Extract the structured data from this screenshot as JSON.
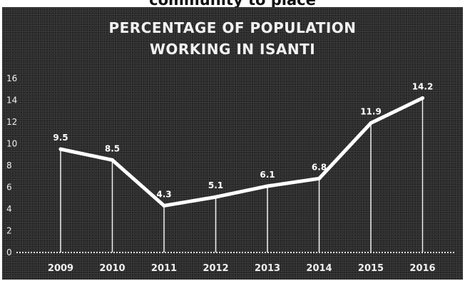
{
  "page": {
    "top_text": "community to place"
  },
  "chart_data": {
    "type": "line",
    "title_lines": [
      "PERCENTAGE OF POPULATION",
      "WORKING IN ISANTI"
    ],
    "categories": [
      "2009",
      "2010",
      "2011",
      "2012",
      "2013",
      "2014",
      "2015",
      "2016"
    ],
    "values": [
      9.5,
      8.5,
      4.3,
      5.1,
      6.1,
      6.8,
      11.9,
      14.2
    ],
    "data_labels": [
      "9.5",
      "8.5",
      "4.3",
      "5.1",
      "6.1",
      "6.8",
      "11.9",
      "14.2"
    ],
    "ylim": [
      0,
      16
    ],
    "yticks": [
      "0",
      "2",
      "4",
      "6",
      "8",
      "10",
      "12",
      "14",
      "16"
    ],
    "xlabel": "",
    "ylabel": "",
    "drop_lines": true,
    "grid": false,
    "line_color": "#ffffff",
    "background_color": "#2b2b2b"
  }
}
